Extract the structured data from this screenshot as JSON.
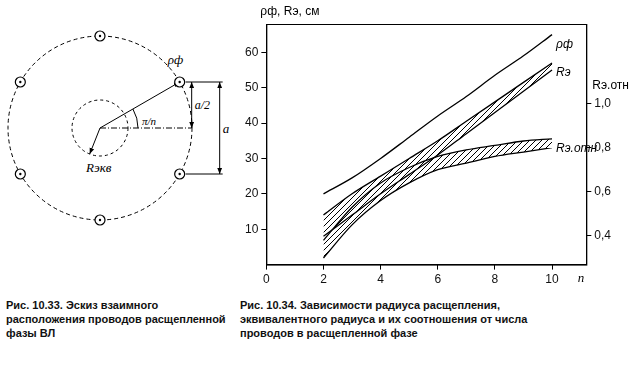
{
  "figure_left": {
    "caption": "Рис. 10.33. Эскиз взаимного расположения проводов расщепленной фазы ВЛ",
    "conductors": 6,
    "labels": {
      "radius": "ρф",
      "equivalent_radius": "Rэкв",
      "angle": "π/n",
      "half_spacing": "a/2",
      "spacing": "a"
    }
  },
  "chart_data": {
    "type": "line",
    "caption": "Рис. 10.34. Зависимости радиуса расщепления, эквивалентного радиуса и их соотношения от числа проводов в расщепленной фазе",
    "x_label": "n",
    "y_label": "ρф, Rэ, см",
    "y2_label": "Rэ.отн",
    "x": [
      2,
      3,
      4,
      5,
      6,
      7,
      8,
      9,
      10
    ],
    "xlim": [
      0,
      11.2
    ],
    "xticks": [
      0,
      2,
      4,
      6,
      8,
      10
    ],
    "ylim": [
      0,
      68
    ],
    "yticks": [
      10,
      20,
      30,
      40,
      50,
      60
    ],
    "y2lim": [
      0.27,
      1.36
    ],
    "y2ticks": [
      {
        "value": 0.4,
        "label": "0,4"
      },
      {
        "value": 0.6,
        "label": "0,6"
      },
      {
        "value": 0.8,
        "label": "0,8"
      },
      {
        "value": 1.0,
        "label": "1,0"
      }
    ],
    "grid": false,
    "series": [
      {
        "name": "ρф",
        "color": "#000000",
        "line_style": "solid",
        "marker": "none",
        "values": [
          20,
          24.5,
          30,
          36,
          42,
          47.5,
          53.5,
          59,
          65
        ]
      },
      {
        "name": "Rэ",
        "color": "#000000",
        "line_style": "solid",
        "marker": "none",
        "values": [
          14,
          20,
          25,
          30,
          35,
          40.5,
          46,
          51.5,
          57
        ],
        "lower": [
          8,
          14,
          20,
          25.5,
          31,
          37,
          43,
          49,
          55
        ]
      },
      {
        "name": "Rэ.отн",
        "color": "#000000",
        "line_style": "solid",
        "marker": "none",
        "axis": "y2",
        "values": [
          0.38,
          0.53,
          0.64,
          0.71,
          0.76,
          0.79,
          0.81,
          0.83,
          0.84
        ],
        "lower": [
          0.3,
          0.45,
          0.56,
          0.64,
          0.7,
          0.73,
          0.76,
          0.78,
          0.8
        ]
      }
    ]
  }
}
